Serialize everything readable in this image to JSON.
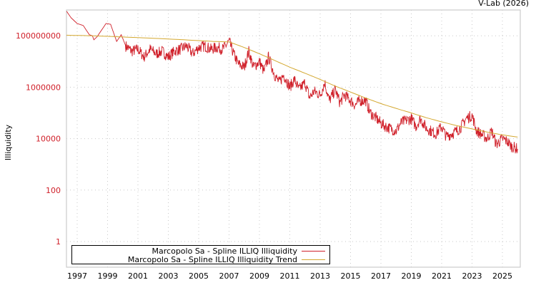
{
  "credit": "V-Lab (2026)",
  "chart_data": {
    "type": "line",
    "title": "",
    "xlabel": "",
    "ylabel": "Illiquidity",
    "yscale": "log",
    "ylim": [
      0.1,
      1000000000
    ],
    "xlim": [
      1996.3,
      2026.1
    ],
    "x_ticks": [
      "1997",
      "1999",
      "2001",
      "2003",
      "2005",
      "2007",
      "2009",
      "2011",
      "2013",
      "2015",
      "2017",
      "2019",
      "2021",
      "2023",
      "2025"
    ],
    "y_ticks": [
      "1",
      "100",
      "10000",
      "1000000",
      "100000000"
    ],
    "grid": true,
    "legend_position": "lower-left",
    "series": [
      {
        "name": "Marcopolo Sa - Spline ILLIQ Illiquidity",
        "color": "#d0202a",
        "x": [
          1996.3,
          1996.6,
          1997.0,
          1997.4,
          1997.8,
          1998.0,
          1998.1,
          1998.3,
          1998.9,
          1999.2,
          1999.6,
          1999.9,
          2000.2,
          2000.6,
          2001.0,
          2001.4,
          2001.8,
          2002.2,
          2002.6,
          2003.0,
          2003.4,
          2003.8,
          2004.2,
          2004.6,
          2005.0,
          2005.4,
          2005.8,
          2006.2,
          2006.6,
          2007.0,
          2007.3,
          2007.6,
          2008.0,
          2008.3,
          2008.6,
          2009.0,
          2009.3,
          2009.6,
          2010.0,
          2010.3,
          2010.6,
          2011.0,
          2011.3,
          2011.6,
          2012.0,
          2012.3,
          2012.6,
          2013.0,
          2013.3,
          2013.6,
          2014.0,
          2014.3,
          2014.6,
          2015.0,
          2015.3,
          2015.6,
          2016.0,
          2016.3,
          2016.6,
          2017.0,
          2017.3,
          2017.6,
          2018.0,
          2018.3,
          2018.6,
          2019.0,
          2019.3,
          2019.6,
          2020.0,
          2020.3,
          2020.6,
          2021.0,
          2021.3,
          2021.6,
          2022.0,
          2022.3,
          2022.6,
          2023.0,
          2023.3,
          2023.6,
          2024.0,
          2024.3,
          2024.6,
          2025.0,
          2025.3,
          2025.6,
          2026.0
        ],
        "y": [
          900000000,
          500000000,
          300000000,
          250000000,
          110000000,
          100000000,
          70000000,
          90000000,
          300000000,
          280000000,
          60000000,
          110000000,
          40000000,
          25000000,
          30000000,
          15000000,
          30000000,
          20000000,
          25000000,
          15000000,
          25000000,
          30000000,
          40000000,
          20000000,
          35000000,
          40000000,
          30000000,
          35000000,
          30000000,
          60000000,
          20000000,
          8000000,
          6000000,
          25000000,
          6000000,
          10000000,
          4000000,
          15000000,
          3000000,
          1500000,
          3000000,
          1000000,
          2000000,
          800000,
          1500000,
          400000,
          700000,
          500000,
          1500000,
          300000,
          800000,
          250000,
          500000,
          300000,
          200000,
          300000,
          300000,
          100000,
          70000,
          40000,
          30000,
          25000,
          20000,
          40000,
          50000,
          60000,
          30000,
          60000,
          25000,
          20000,
          15000,
          30000,
          12000,
          15000,
          20000,
          30000,
          60000,
          80000,
          20000,
          15000,
          10000,
          20000,
          6000,
          10000,
          8000,
          5000,
          4000
        ]
      },
      {
        "name": "Marcopolo Sa - Spline ILLIQ Illiquidity Trend",
        "color": "#d4a830",
        "x": [
          1996.3,
          1998.0,
          2000.0,
          2002.0,
          2004.0,
          2006.0,
          2007.0,
          2008.0,
          2009.0,
          2010.0,
          2011.0,
          2012.0,
          2013.0,
          2014.0,
          2015.0,
          2016.0,
          2017.0,
          2018.0,
          2019.0,
          2020.0,
          2021.0,
          2022.0,
          2023.0,
          2024.0,
          2025.0,
          2026.0
        ],
        "y": [
          105000000,
          100000000,
          90000000,
          80000000,
          70000000,
          60000000,
          58000000,
          35000000,
          20000000,
          11000000,
          6000000,
          3500000,
          2000000,
          1100000,
          650000,
          380000,
          230000,
          150000,
          100000,
          65000,
          45000,
          32000,
          24000,
          18000,
          14000,
          11500
        ]
      }
    ]
  },
  "legend": {
    "items": [
      {
        "label": "Marcopolo Sa - Spline ILLIQ Illiquidity",
        "color": "#d0202a"
      },
      {
        "label": "Marcopolo Sa - Spline ILLIQ Illiquidity Trend",
        "color": "#d4a830"
      }
    ]
  }
}
